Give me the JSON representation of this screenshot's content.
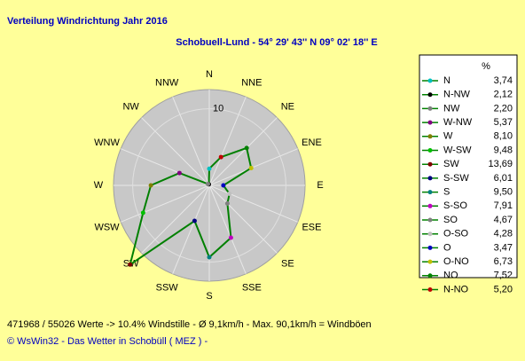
{
  "chart_data": {
    "type": "radar",
    "title": "Verteilung Windrichtung   Jahr 2016",
    "subtitle": "Schobuell-Lund - 54° 29' 43''  N  09° 02' 18'' E",
    "axis_labels": [
      "N",
      "NNE",
      "NE",
      "ENE",
      "E",
      "ESE",
      "SE",
      "SSE",
      "S",
      "SSW",
      "SW",
      "WSW",
      "W",
      "WNW",
      "NW",
      "NNW"
    ],
    "legend_header": "%",
    "categories": [
      "N",
      "N-NW",
      "NW",
      "W-NW",
      "W",
      "W-SW",
      "SW",
      "S-SW",
      "S",
      "S-SO",
      "SO",
      "O-SO",
      "O",
      "O-NO",
      "NO",
      "N-NO"
    ],
    "values": [
      3.74,
      2.12,
      2.2,
      5.37,
      8.1,
      9.48,
      13.69,
      6.01,
      9.5,
      7.91,
      4.67,
      4.28,
      3.47,
      6.73,
      7.52,
      5.2
    ],
    "value_labels": [
      "3,74",
      "2,12",
      "2,20",
      "5,37",
      "8,10",
      "9,48",
      "13,69",
      "6,01",
      "9,50",
      "7,91",
      "4,67",
      "4,28",
      "3,47",
      "6,73",
      "7,52",
      "5,20"
    ],
    "colors": [
      "#00c0c0",
      "#000000",
      "#808080",
      "#800080",
      "#808000",
      "#00c000",
      "#800000",
      "#000080",
      "#008080",
      "#c000c0",
      "#808080",
      "#c0c0c0",
      "#0000c0",
      "#c0c000",
      "#008000",
      "#c00000"
    ],
    "line_color": "#008000",
    "rlim": [
      2,
      12
    ],
    "rticks": [
      10
    ],
    "footer": [
      "471968 / 55026 Werte  -> 10.4% Windstille   -   Ø 9,1km/h  -  Max. 90,1km/h = Windböen",
      "© WsWin32  -  Das Wetter in Schobüll ( MEZ )  -"
    ]
  }
}
